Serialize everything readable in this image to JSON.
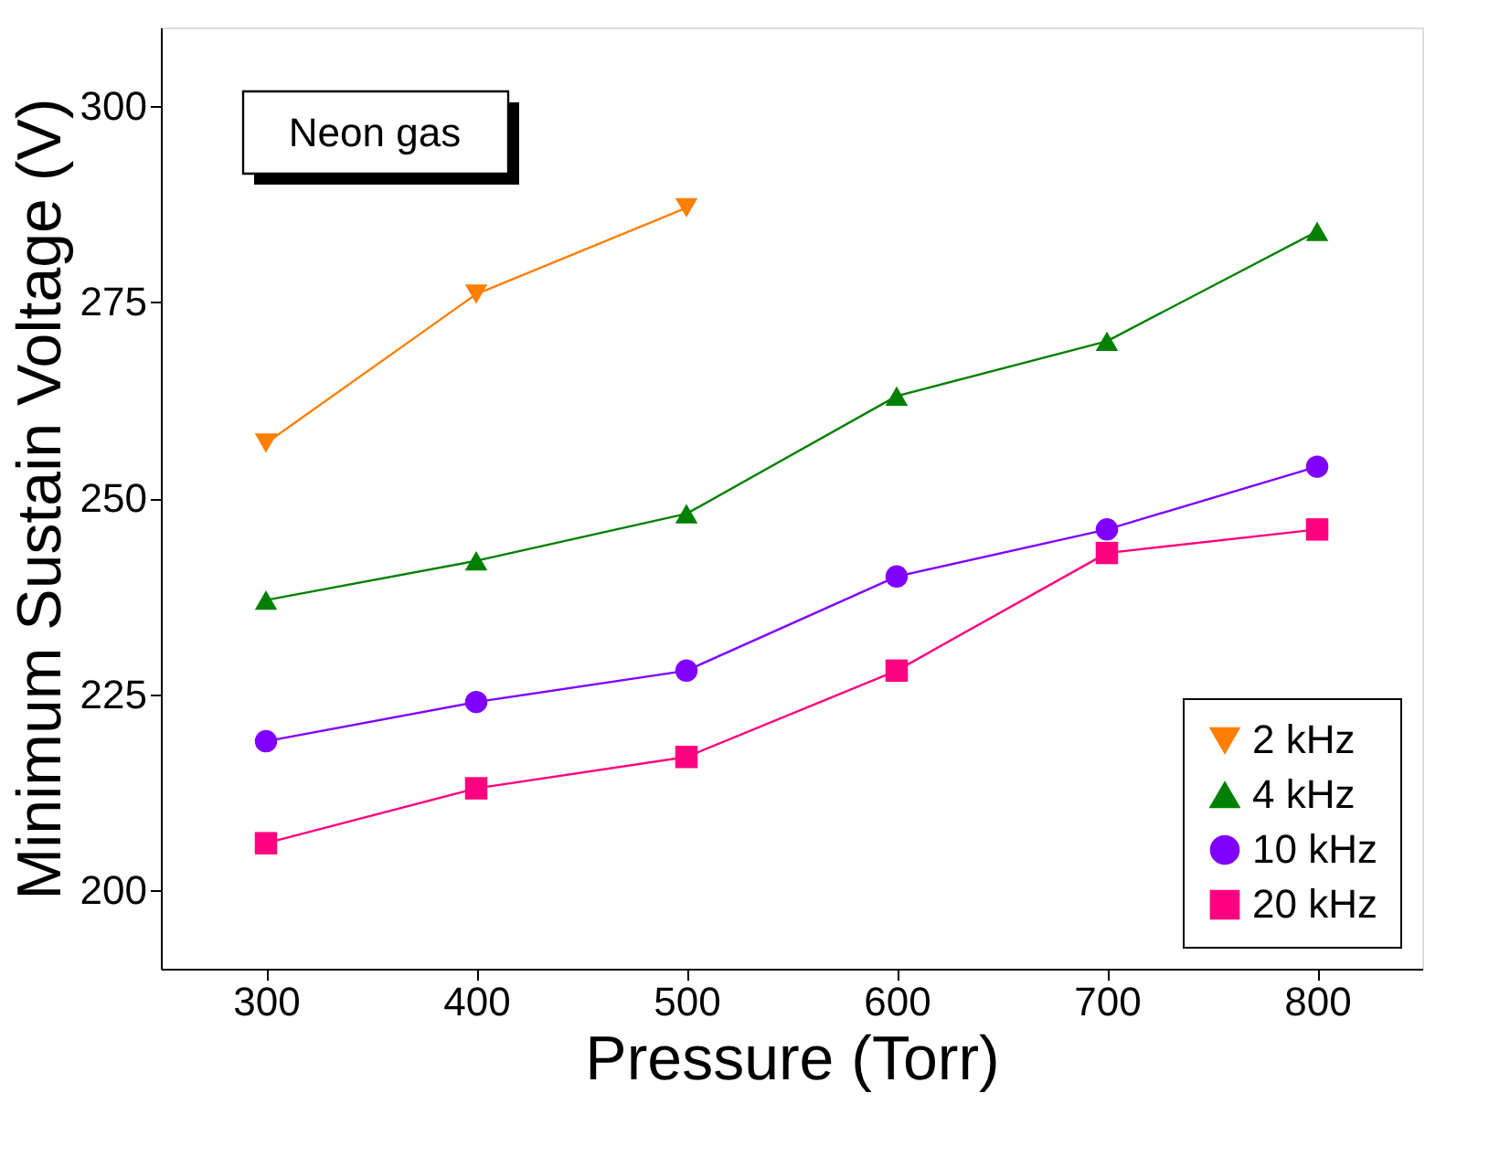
{
  "chart_data": {
    "type": "line",
    "xlabel": "Pressure (Torr)",
    "ylabel": "Minimum Sustain Voltage (V)",
    "x": [
      300,
      400,
      500,
      600,
      700,
      800
    ],
    "series": [
      {
        "name": "2 kHz",
        "color": "#ff7f00",
        "marker": "triangle-down",
        "x": [
          300,
          400,
          500
        ],
        "values": [
          257,
          276,
          287
        ]
      },
      {
        "name": "4 kHz",
        "color": "#008000",
        "marker": "triangle",
        "values": [
          237,
          242,
          248,
          263,
          270,
          284
        ]
      },
      {
        "name": "10 kHz",
        "color": "#8000ff",
        "marker": "circle",
        "values": [
          219,
          224,
          228,
          240,
          246,
          254
        ]
      },
      {
        "name": "20 kHz",
        "color": "#ff0080",
        "marker": "square",
        "values": [
          206,
          213,
          217,
          228,
          243,
          246
        ]
      }
    ],
    "xlim": [
      250,
      850
    ],
    "xticks": [
      300,
      400,
      500,
      600,
      700,
      800
    ],
    "ylim": [
      190,
      310
    ],
    "yticks": [
      200,
      225,
      250,
      275,
      300
    ],
    "annotations": [
      "Neon gas"
    ],
    "grid": false,
    "legend": "bottom right",
    "line_style": "solid"
  }
}
